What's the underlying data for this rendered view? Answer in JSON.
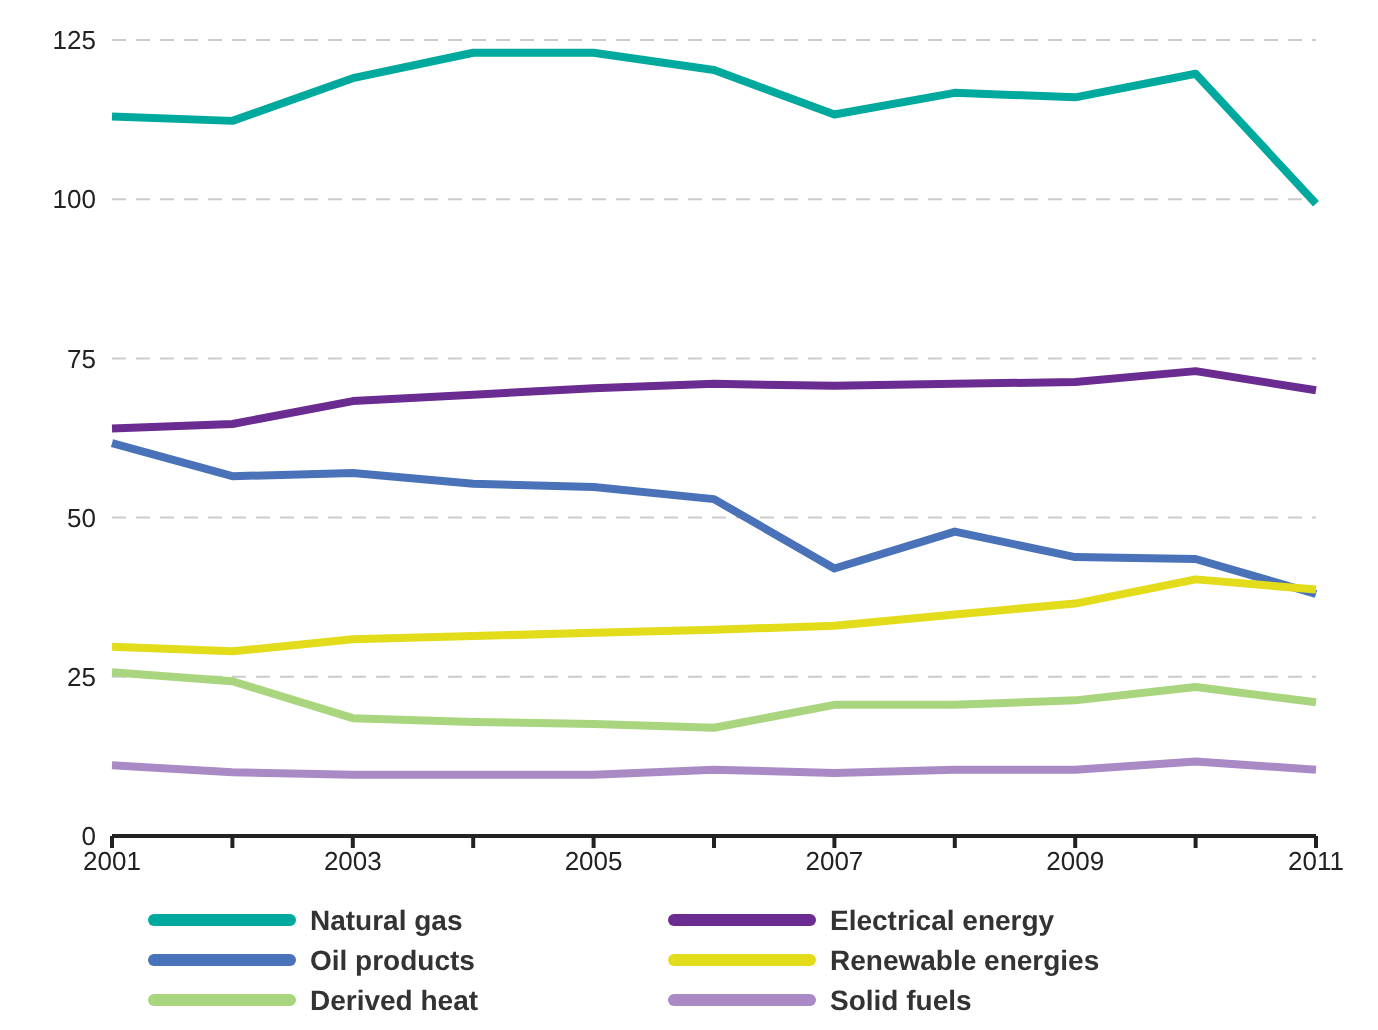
{
  "chart_data": {
    "type": "line",
    "categories": [
      "2001",
      null,
      "2003",
      null,
      "2005",
      null,
      "2007",
      null,
      "2009",
      null,
      "2011"
    ],
    "series": [
      {
        "name": "Natural gas",
        "color": "#00a99d",
        "values": [
          113,
          112.3,
          119,
          123,
          123,
          120.3,
          113.3,
          116.7,
          116,
          119.7,
          99.3
        ]
      },
      {
        "name": "Electrical energy",
        "color": "#6a2c91",
        "values": [
          64,
          64.7,
          68.3,
          69.3,
          70.3,
          71,
          70.7,
          71,
          71.3,
          73,
          70
        ]
      },
      {
        "name": "Oil products",
        "color": "#4a72b8",
        "values": [
          61.7,
          56.5,
          57,
          55.3,
          54.8,
          52.9,
          42,
          47.8,
          43.8,
          43.5,
          38
        ]
      },
      {
        "name": "Renewable energies",
        "color": "#e2dc1a",
        "values": [
          29.7,
          29,
          30.9,
          31.4,
          31.9,
          32.4,
          33,
          34.8,
          36.5,
          40.3,
          38.7
        ]
      },
      {
        "name": "Derived heat",
        "color": "#a9d57e",
        "values": [
          25.7,
          24.3,
          18.5,
          17.9,
          17.6,
          17,
          20.6,
          20.6,
          21.3,
          23.4,
          21
        ]
      },
      {
        "name": "Solid fuels",
        "color": "#a98ac4",
        "values": [
          11.1,
          10,
          9.6,
          9.6,
          9.6,
          10.4,
          9.9,
          10.4,
          10.4,
          11.7,
          10.4
        ]
      }
    ],
    "ylim": [
      0,
      125
    ],
    "yticks": [
      0,
      25,
      50,
      75,
      100,
      125
    ],
    "grid": "y",
    "legend": "bottom",
    "marker": "none",
    "line_style": "solid"
  }
}
